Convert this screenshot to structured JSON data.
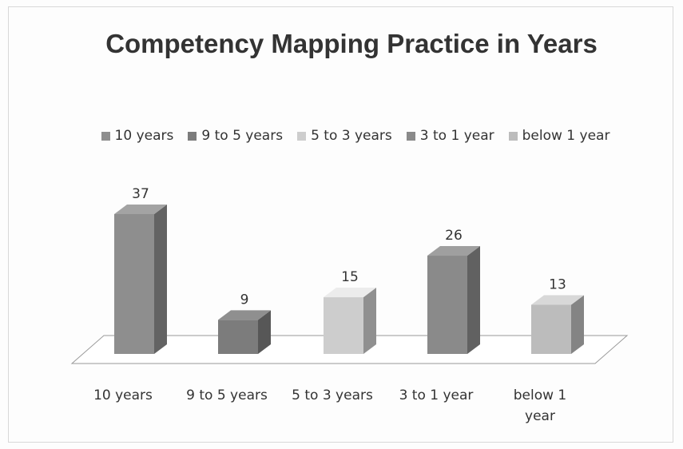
{
  "chart_data": {
    "type": "bar3d",
    "title": "Competency Mapping Practice in Years",
    "categories": [
      "10 years",
      "9 to 5 years",
      "5 to 3 years",
      "3 to 1 year",
      "below 1 year"
    ],
    "values": [
      37,
      9,
      15,
      26,
      13
    ],
    "colors": [
      "#8e8e8e",
      "#7c7c7c",
      "#cdcdcd",
      "#8a8a8a",
      "#bcbcbc"
    ],
    "legend": "top"
  }
}
